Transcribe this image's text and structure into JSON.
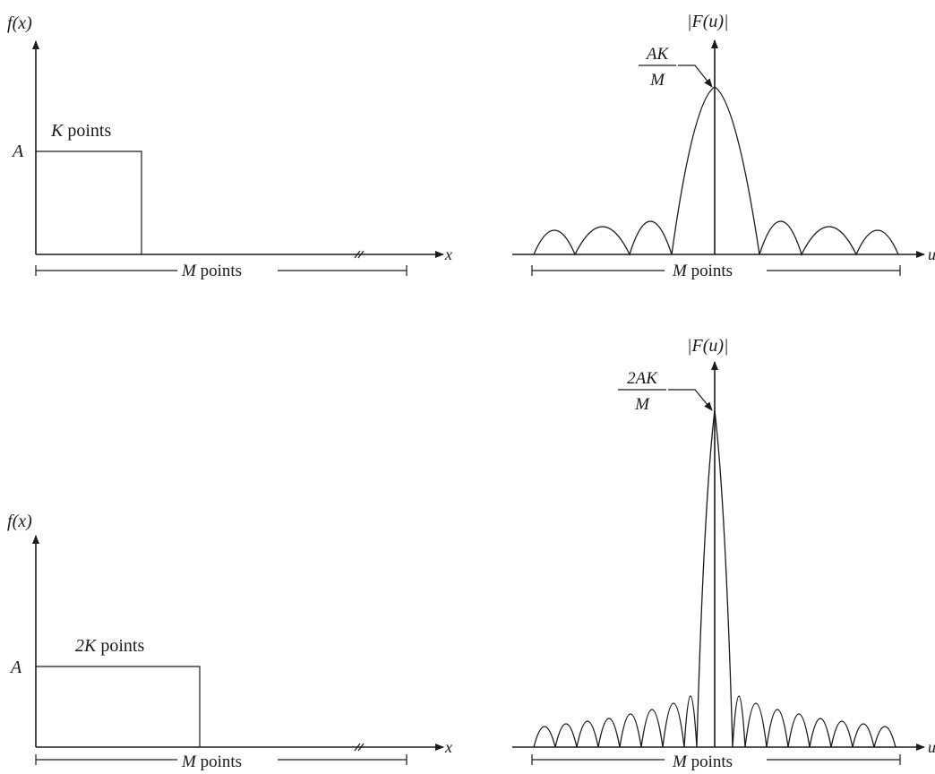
{
  "panels": {
    "top_left": {
      "y_label_func": "f",
      "y_label_arg": "(x)",
      "amplitude_label": "A",
      "width_label_var": "K",
      "width_label_text": " points",
      "span_label_var": "M",
      "span_label_text": " points",
      "x_label": "x"
    },
    "top_right": {
      "y_label": "|F(u)|",
      "peak_numerator": "AK",
      "peak_denominator": "M",
      "span_label_var": "M",
      "span_label_text": " points",
      "x_label": "u"
    },
    "bottom_left": {
      "y_label_func": "f",
      "y_label_arg": "(x)",
      "amplitude_label": "A",
      "width_label_var": "2K",
      "width_label_text": " points",
      "span_label_var": "M",
      "span_label_text": " points",
      "x_label": "x"
    },
    "bottom_right": {
      "y_label": "|F(u)|",
      "peak_numerator": "2AK",
      "peak_denominator": "M",
      "span_label_var": "M",
      "span_label_text": " points",
      "x_label": "u"
    }
  }
}
